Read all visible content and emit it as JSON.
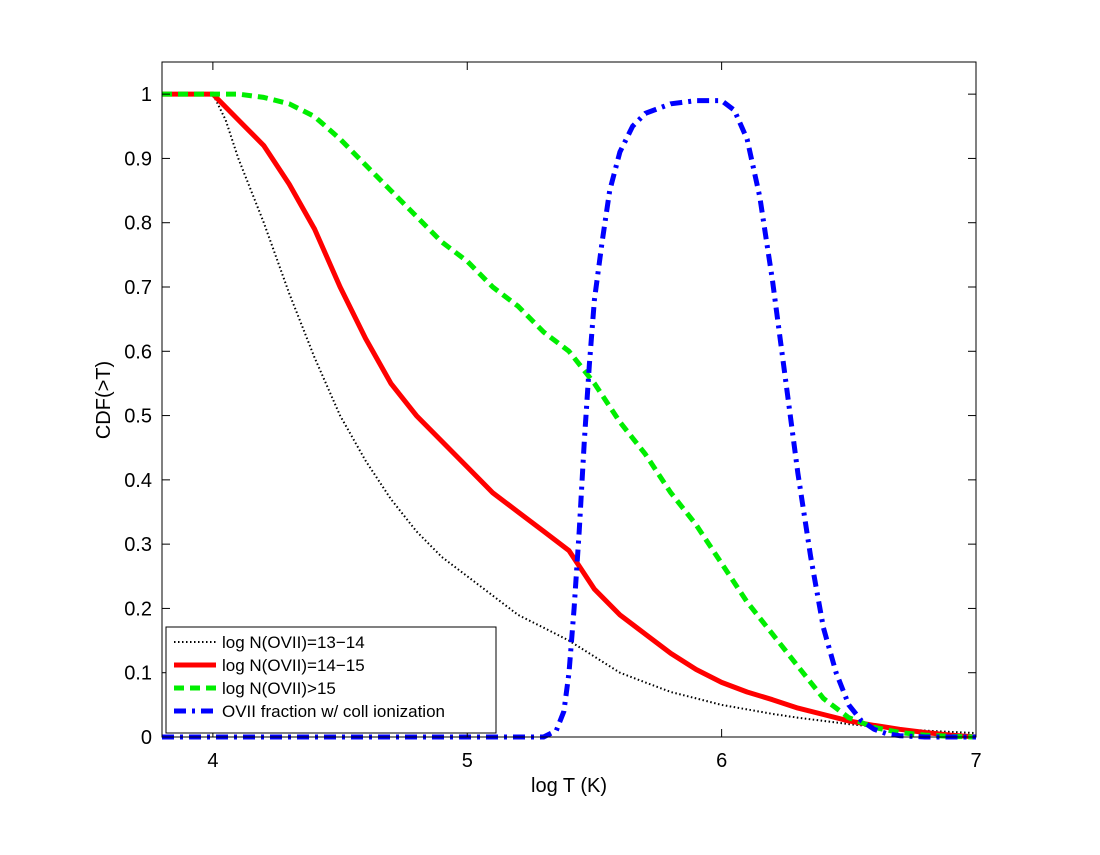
{
  "chart_data": {
    "type": "line",
    "title": "",
    "xlabel": "log T (K)",
    "ylabel": "CDF(>T)",
    "xlim": [
      3.8,
      7.0
    ],
    "ylim": [
      0,
      1.05
    ],
    "x_ticks": [
      "4",
      "5",
      "6",
      "7"
    ],
    "y_ticks": [
      "0",
      "0.1",
      "0.2",
      "0.3",
      "0.4",
      "0.5",
      "0.6",
      "0.7",
      "0.8",
      "0.9",
      "1"
    ],
    "grid": false,
    "legend_position": "bottom-left",
    "series": [
      {
        "name": "log N(OVII)=13−14",
        "color": "#000000",
        "style": "dotted",
        "x": [
          3.8,
          3.9,
          4.0,
          4.05,
          4.1,
          4.2,
          4.3,
          4.4,
          4.5,
          4.6,
          4.7,
          4.8,
          4.9,
          5.0,
          5.1,
          5.2,
          5.3,
          5.4,
          5.5,
          5.6,
          5.7,
          5.8,
          5.9,
          6.0,
          6.1,
          6.2,
          6.3,
          6.4,
          6.5,
          6.6,
          6.7,
          6.8,
          6.9,
          7.0
        ],
        "y": [
          1.0,
          1.0,
          1.0,
          0.96,
          0.9,
          0.8,
          0.69,
          0.59,
          0.5,
          0.43,
          0.37,
          0.32,
          0.28,
          0.25,
          0.22,
          0.19,
          0.17,
          0.15,
          0.125,
          0.1,
          0.085,
          0.07,
          0.06,
          0.05,
          0.043,
          0.036,
          0.03,
          0.025,
          0.02,
          0.016,
          0.012,
          0.01,
          0.008,
          0.006
        ]
      },
      {
        "name": "log N(OVII)=14−15",
        "color": "#ff0000",
        "style": "solid",
        "x": [
          3.8,
          3.9,
          4.0,
          4.05,
          4.1,
          4.2,
          4.3,
          4.4,
          4.5,
          4.6,
          4.7,
          4.8,
          4.9,
          5.0,
          5.1,
          5.2,
          5.3,
          5.4,
          5.45,
          5.5,
          5.6,
          5.7,
          5.8,
          5.9,
          6.0,
          6.1,
          6.2,
          6.3,
          6.4,
          6.5,
          6.6,
          6.7,
          6.8,
          6.9,
          7.0
        ],
        "y": [
          1.0,
          1.0,
          1.0,
          0.98,
          0.96,
          0.92,
          0.86,
          0.79,
          0.7,
          0.62,
          0.55,
          0.5,
          0.46,
          0.42,
          0.38,
          0.35,
          0.32,
          0.29,
          0.26,
          0.23,
          0.19,
          0.16,
          0.13,
          0.105,
          0.085,
          0.07,
          0.058,
          0.045,
          0.035,
          0.025,
          0.018,
          0.012,
          0.007,
          0.003,
          0.0
        ]
      },
      {
        "name": "log N(OVII)>15",
        "color": "#00ee00",
        "style": "dashed",
        "x": [
          3.8,
          3.9,
          4.0,
          4.1,
          4.2,
          4.3,
          4.4,
          4.5,
          4.6,
          4.7,
          4.8,
          4.9,
          5.0,
          5.1,
          5.2,
          5.3,
          5.4,
          5.5,
          5.6,
          5.7,
          5.8,
          5.9,
          6.0,
          6.1,
          6.2,
          6.3,
          6.4,
          6.5,
          6.6,
          6.7,
          6.8,
          6.9,
          7.0
        ],
        "y": [
          1.0,
          1.0,
          1.0,
          1.0,
          0.995,
          0.985,
          0.965,
          0.93,
          0.89,
          0.85,
          0.81,
          0.77,
          0.74,
          0.7,
          0.67,
          0.63,
          0.6,
          0.55,
          0.49,
          0.44,
          0.38,
          0.33,
          0.27,
          0.21,
          0.16,
          0.11,
          0.06,
          0.03,
          0.015,
          0.007,
          0.003,
          0.001,
          0.0
        ]
      },
      {
        "name": "OVII fraction w/ coll ionization",
        "color": "#0000ff",
        "style": "dashdot",
        "x": [
          3.8,
          4.5,
          5.0,
          5.3,
          5.35,
          5.38,
          5.4,
          5.42,
          5.44,
          5.46,
          5.48,
          5.5,
          5.53,
          5.56,
          5.6,
          5.65,
          5.7,
          5.8,
          5.9,
          6.0,
          6.05,
          6.1,
          6.15,
          6.2,
          6.25,
          6.3,
          6.35,
          6.4,
          6.45,
          6.5,
          6.55,
          6.6,
          6.65,
          6.7,
          6.8,
          7.0
        ],
        "y": [
          0.0,
          0.0,
          0.0,
          0.0,
          0.01,
          0.04,
          0.1,
          0.2,
          0.32,
          0.46,
          0.58,
          0.68,
          0.77,
          0.85,
          0.91,
          0.95,
          0.97,
          0.985,
          0.99,
          0.99,
          0.975,
          0.93,
          0.84,
          0.71,
          0.56,
          0.41,
          0.28,
          0.17,
          0.1,
          0.05,
          0.025,
          0.012,
          0.005,
          0.002,
          0.0,
          0.0
        ]
      }
    ]
  }
}
